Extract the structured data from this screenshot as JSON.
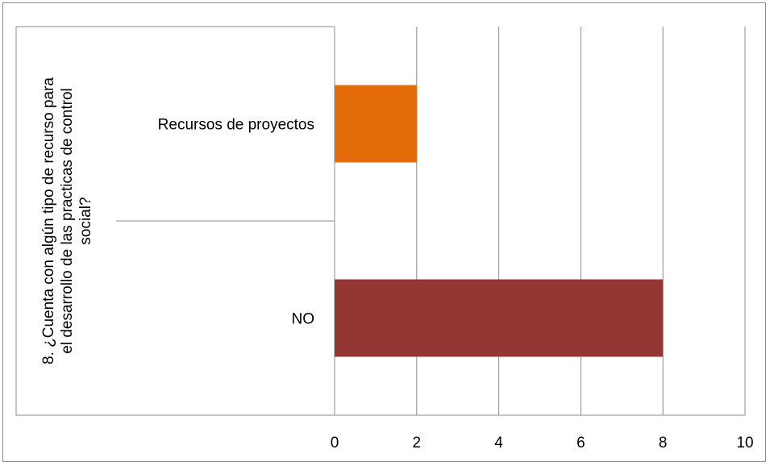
{
  "chart_data": {
    "type": "bar",
    "orientation": "horizontal",
    "group_label_lines": [
      "8. ¿Cuenta con algún tipo de recurso  para",
      "el desarrollo de las practicas de  control",
      "social?"
    ],
    "categories": [
      "Recursos de proyectos",
      "NO"
    ],
    "values": [
      2,
      8
    ],
    "colors": [
      "#E46C0A",
      "#943634"
    ],
    "xlim": [
      0,
      10
    ],
    "ticks": [
      0,
      2,
      4,
      6,
      8,
      10
    ],
    "grid": true,
    "legend": "none"
  }
}
